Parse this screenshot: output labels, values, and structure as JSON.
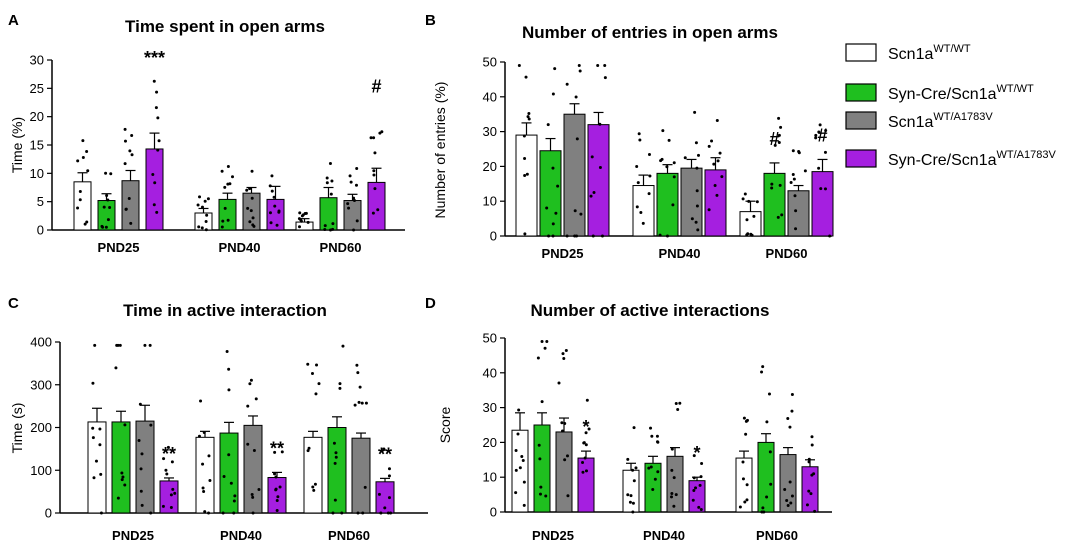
{
  "legend": {
    "items": [
      {
        "base": "Scn1a",
        "sup": "WT/WT",
        "color": "#ffffff"
      },
      {
        "base": "Syn-Cre/Scn1a",
        "sup": "WT/WT",
        "color": "#1fbf1f"
      },
      {
        "base": "Scn1a",
        "sup": "WT/A1783V",
        "color": "#808080"
      },
      {
        "base": "Syn-Cre/Scn1a",
        "sup": "WT/A1783V",
        "color": "#a51fe0"
      }
    ]
  },
  "chart_data": [
    {
      "panel": "A",
      "type": "bar",
      "title": "Time spent in open arms",
      "ylabel": "Time (%)",
      "xlabel": "",
      "ylim": [
        0,
        30
      ],
      "yticks": [
        0,
        5,
        10,
        15,
        20,
        25,
        30
      ],
      "categories": [
        "PND25",
        "PND40",
        "PND60"
      ],
      "series": [
        {
          "name": "Scn1a WT/WT",
          "values": [
            8.5,
            3.0,
            1.4
          ],
          "errors": [
            1.6,
            0.8,
            0.6
          ]
        },
        {
          "name": "Syn-Cre/Scn1a WT/WT",
          "values": [
            5.2,
            5.4,
            5.7
          ],
          "errors": [
            1.2,
            1.1,
            1.8
          ]
        },
        {
          "name": "Scn1a WT/A1783V",
          "values": [
            8.7,
            6.5,
            5.2
          ],
          "errors": [
            1.8,
            1.0,
            1.1
          ]
        },
        {
          "name": "Syn-Cre/Scn1a WT/A1783V",
          "values": [
            14.3,
            5.4,
            8.4
          ],
          "errors": [
            2.8,
            2.3,
            2.5
          ]
        }
      ],
      "annotations": [
        {
          "category": "PND25",
          "series": 3,
          "text": "***"
        },
        {
          "category": "PND60",
          "series": 3,
          "text": "#"
        }
      ]
    },
    {
      "panel": "B",
      "type": "bar",
      "title": "Number of entries in open arms",
      "ylabel": "Number of entries (%)",
      "xlabel": "",
      "ylim": [
        0,
        50
      ],
      "yticks": [
        0,
        10,
        20,
        30,
        40,
        50
      ],
      "categories": [
        "PND25",
        "PND40",
        "PND60"
      ],
      "series": [
        {
          "name": "Scn1a WT/WT",
          "values": [
            29.0,
            14.5,
            7.0
          ],
          "errors": [
            3.5,
            3.0,
            3.0
          ]
        },
        {
          "name": "Syn-Cre/Scn1a WT/WT",
          "values": [
            24.5,
            18.0,
            18.0
          ],
          "errors": [
            3.5,
            2.5,
            3.0
          ]
        },
        {
          "name": "Scn1a WT/A1783V",
          "values": [
            35.0,
            19.5,
            13.0
          ],
          "errors": [
            3.0,
            2.5,
            1.5
          ]
        },
        {
          "name": "Syn-Cre/Scn1a WT/A1783V",
          "values": [
            32.0,
            19.0,
            18.5
          ],
          "errors": [
            3.5,
            3.5,
            3.5
          ]
        }
      ],
      "annotations": [
        {
          "category": "PND60",
          "series": 1,
          "text": "#"
        },
        {
          "category": "PND60",
          "series": 3,
          "text": "#"
        }
      ]
    },
    {
      "panel": "C",
      "type": "bar",
      "title": "Time in active interaction",
      "ylabel": "Time (s)",
      "xlabel": "",
      "ylim": [
        0,
        400
      ],
      "yticks": [
        0,
        100,
        200,
        300,
        400
      ],
      "categories": [
        "PND25",
        "PND40",
        "PND60"
      ],
      "series": [
        {
          "name": "Scn1a WT/WT",
          "values": [
            213,
            177,
            177
          ],
          "errors": [
            32,
            14,
            14
          ]
        },
        {
          "name": "Syn-Cre/Scn1a WT/WT",
          "values": [
            213,
            187,
            200
          ],
          "errors": [
            25,
            25,
            25
          ]
        },
        {
          "name": "Scn1a WT/A1783V",
          "values": [
            215,
            205,
            175
          ],
          "errors": [
            37,
            22,
            12
          ]
        },
        {
          "name": "Syn-Cre/Scn1a WT/A1783V",
          "values": [
            75,
            83,
            73
          ],
          "errors": [
            7,
            12,
            8
          ]
        }
      ],
      "annotations": [
        {
          "category": "PND25",
          "series": 3,
          "text": "**"
        },
        {
          "category": "PND40",
          "series": 3,
          "text": "**"
        },
        {
          "category": "PND60",
          "series": 3,
          "text": "**"
        }
      ]
    },
    {
      "panel": "D",
      "type": "bar",
      "title": "Number of active interactions",
      "ylabel": "Score",
      "xlabel": "",
      "ylim": [
        0,
        50
      ],
      "yticks": [
        0,
        10,
        20,
        30,
        40,
        50
      ],
      "categories": [
        "PND25",
        "PND40",
        "PND60"
      ],
      "series": [
        {
          "name": "Scn1a WT/WT",
          "values": [
            23.5,
            12.0,
            15.5
          ],
          "errors": [
            5.0,
            2.0,
            2.0
          ]
        },
        {
          "name": "Syn-Cre/Scn1a WT/WT",
          "values": [
            25.0,
            14.0,
            20.0
          ],
          "errors": [
            3.5,
            2.0,
            2.5
          ]
        },
        {
          "name": "Scn1a WT/A1783V",
          "values": [
            23.0,
            16.0,
            16.5
          ],
          "errors": [
            4.0,
            2.5,
            2.0
          ]
        },
        {
          "name": "Syn-Cre/Scn1a WT/A1783V",
          "values": [
            15.5,
            9.0,
            13.0
          ],
          "errors": [
            2.0,
            1.0,
            2.0
          ]
        }
      ],
      "annotations": [
        {
          "category": "PND25",
          "series": 3,
          "text": "*"
        },
        {
          "category": "PND40",
          "series": 3,
          "text": "*"
        }
      ]
    }
  ]
}
